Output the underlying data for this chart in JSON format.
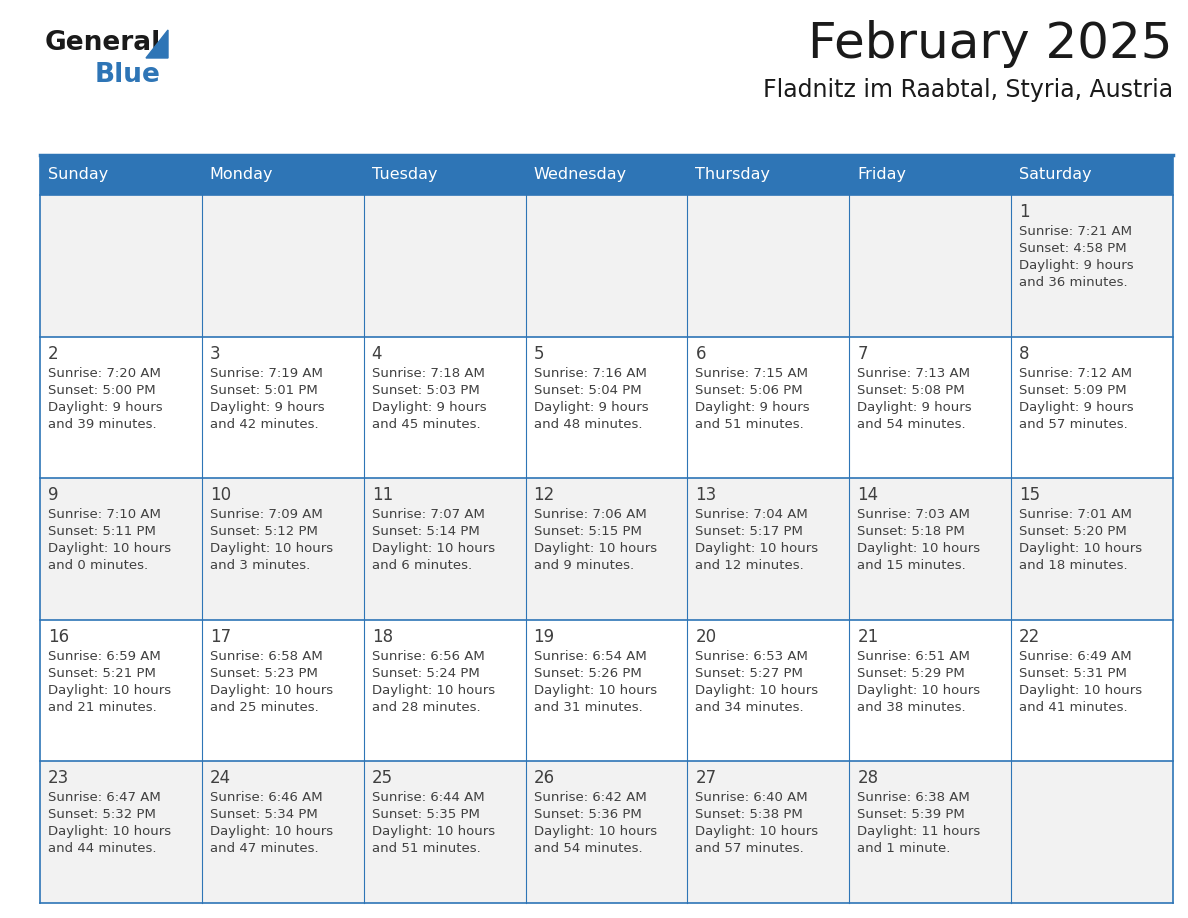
{
  "title": "February 2025",
  "subtitle": "Fladnitz im Raabtal, Styria, Austria",
  "days_of_week": [
    "Sunday",
    "Monday",
    "Tuesday",
    "Wednesday",
    "Thursday",
    "Friday",
    "Saturday"
  ],
  "header_bg": "#2E75B6",
  "header_text": "#FFFFFF",
  "cell_bg": "#FFFFFF",
  "cell_bg_alt": "#F2F2F2",
  "border_color": "#2E75B6",
  "text_color": "#404040",
  "day_num_color": "#404040",
  "title_color": "#1a1a1a",
  "calendar_data": [
    [
      null,
      null,
      null,
      null,
      null,
      null,
      {
        "day": 1,
        "sunrise": "7:21 AM",
        "sunset": "4:58 PM",
        "daylight": "9 hours\nand 36 minutes."
      }
    ],
    [
      {
        "day": 2,
        "sunrise": "7:20 AM",
        "sunset": "5:00 PM",
        "daylight": "9 hours\nand 39 minutes."
      },
      {
        "day": 3,
        "sunrise": "7:19 AM",
        "sunset": "5:01 PM",
        "daylight": "9 hours\nand 42 minutes."
      },
      {
        "day": 4,
        "sunrise": "7:18 AM",
        "sunset": "5:03 PM",
        "daylight": "9 hours\nand 45 minutes."
      },
      {
        "day": 5,
        "sunrise": "7:16 AM",
        "sunset": "5:04 PM",
        "daylight": "9 hours\nand 48 minutes."
      },
      {
        "day": 6,
        "sunrise": "7:15 AM",
        "sunset": "5:06 PM",
        "daylight": "9 hours\nand 51 minutes."
      },
      {
        "day": 7,
        "sunrise": "7:13 AM",
        "sunset": "5:08 PM",
        "daylight": "9 hours\nand 54 minutes."
      },
      {
        "day": 8,
        "sunrise": "7:12 AM",
        "sunset": "5:09 PM",
        "daylight": "9 hours\nand 57 minutes."
      }
    ],
    [
      {
        "day": 9,
        "sunrise": "7:10 AM",
        "sunset": "5:11 PM",
        "daylight": "10 hours\nand 0 minutes."
      },
      {
        "day": 10,
        "sunrise": "7:09 AM",
        "sunset": "5:12 PM",
        "daylight": "10 hours\nand 3 minutes."
      },
      {
        "day": 11,
        "sunrise": "7:07 AM",
        "sunset": "5:14 PM",
        "daylight": "10 hours\nand 6 minutes."
      },
      {
        "day": 12,
        "sunrise": "7:06 AM",
        "sunset": "5:15 PM",
        "daylight": "10 hours\nand 9 minutes."
      },
      {
        "day": 13,
        "sunrise": "7:04 AM",
        "sunset": "5:17 PM",
        "daylight": "10 hours\nand 12 minutes."
      },
      {
        "day": 14,
        "sunrise": "7:03 AM",
        "sunset": "5:18 PM",
        "daylight": "10 hours\nand 15 minutes."
      },
      {
        "day": 15,
        "sunrise": "7:01 AM",
        "sunset": "5:20 PM",
        "daylight": "10 hours\nand 18 minutes."
      }
    ],
    [
      {
        "day": 16,
        "sunrise": "6:59 AM",
        "sunset": "5:21 PM",
        "daylight": "10 hours\nand 21 minutes."
      },
      {
        "day": 17,
        "sunrise": "6:58 AM",
        "sunset": "5:23 PM",
        "daylight": "10 hours\nand 25 minutes."
      },
      {
        "day": 18,
        "sunrise": "6:56 AM",
        "sunset": "5:24 PM",
        "daylight": "10 hours\nand 28 minutes."
      },
      {
        "day": 19,
        "sunrise": "6:54 AM",
        "sunset": "5:26 PM",
        "daylight": "10 hours\nand 31 minutes."
      },
      {
        "day": 20,
        "sunrise": "6:53 AM",
        "sunset": "5:27 PM",
        "daylight": "10 hours\nand 34 minutes."
      },
      {
        "day": 21,
        "sunrise": "6:51 AM",
        "sunset": "5:29 PM",
        "daylight": "10 hours\nand 38 minutes."
      },
      {
        "day": 22,
        "sunrise": "6:49 AM",
        "sunset": "5:31 PM",
        "daylight": "10 hours\nand 41 minutes."
      }
    ],
    [
      {
        "day": 23,
        "sunrise": "6:47 AM",
        "sunset": "5:32 PM",
        "daylight": "10 hours\nand 44 minutes."
      },
      {
        "day": 24,
        "sunrise": "6:46 AM",
        "sunset": "5:34 PM",
        "daylight": "10 hours\nand 47 minutes."
      },
      {
        "day": 25,
        "sunrise": "6:44 AM",
        "sunset": "5:35 PM",
        "daylight": "10 hours\nand 51 minutes."
      },
      {
        "day": 26,
        "sunrise": "6:42 AM",
        "sunset": "5:36 PM",
        "daylight": "10 hours\nand 54 minutes."
      },
      {
        "day": 27,
        "sunrise": "6:40 AM",
        "sunset": "5:38 PM",
        "daylight": "10 hours\nand 57 minutes."
      },
      {
        "day": 28,
        "sunrise": "6:38 AM",
        "sunset": "5:39 PM",
        "daylight": "11 hours\nand 1 minute."
      },
      null
    ]
  ]
}
